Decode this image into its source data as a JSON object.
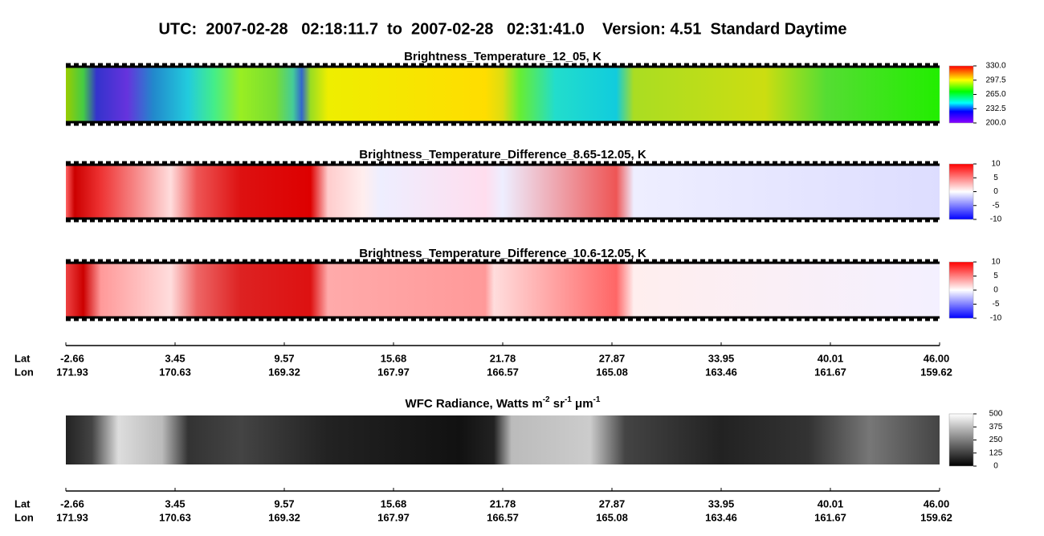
{
  "header": {
    "title": "UTC:  2007-02-28   02:18:11.7  to  2007-02-28   02:31:41.0    Version: 4.51  Standard Daytime"
  },
  "panels": [
    {
      "title": "Brightness_Temperature_12_05, K",
      "colorbar_ticks": [
        "330.0",
        "297.5",
        "265.0",
        "232.5",
        "200.0"
      ]
    },
    {
      "title": "Brightness_Temperature_Difference_8.65-12.05, K",
      "colorbar_ticks": [
        "10",
        "5",
        "0",
        "-5",
        "-10"
      ]
    },
    {
      "title": "Brightness_Temperature_Difference_10.6-12.05, K",
      "colorbar_ticks": [
        "10",
        "5",
        "0",
        "-5",
        "-10"
      ]
    },
    {
      "title": {
        "text": "WFC Radiance, Watts m",
        "sup1": "-2",
        "mid": " sr",
        "sup2": "-1",
        "mu": " μm",
        "sup3": "-1"
      },
      "colorbar_ticks": [
        "500",
        "375",
        "250",
        "125",
        "0"
      ]
    }
  ],
  "axis": {
    "lat_label": "Lat",
    "lon_label": "Lon",
    "lat": [
      "-2.66",
      "3.45",
      "9.57",
      "15.68",
      "21.78",
      "27.87",
      "33.95",
      "40.01",
      "46.00"
    ],
    "lon": [
      "171.93",
      "170.63",
      "169.32",
      "167.97",
      "166.57",
      "165.08",
      "163.46",
      "161.67",
      "159.62"
    ]
  }
}
